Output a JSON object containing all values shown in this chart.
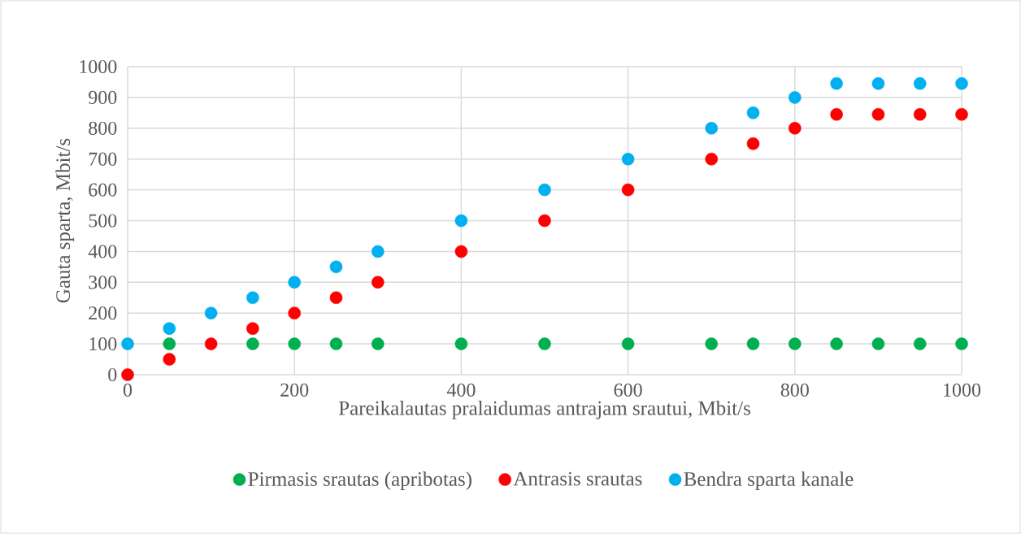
{
  "chart_data": {
    "type": "scatter",
    "xlabel": "Pareikalautas pralaidumas antrajam srautui, Mbit/s",
    "ylabel": "Gauta sparta, Mbit/s",
    "x": [
      0,
      50,
      100,
      150,
      200,
      250,
      300,
      400,
      500,
      600,
      700,
      750,
      800,
      850,
      900,
      950,
      1000
    ],
    "series": [
      {
        "name": "Pirmasis srautas (apribotas)",
        "color": "#00b050",
        "values": [
          null,
          100,
          null,
          100,
          100,
          100,
          100,
          100,
          100,
          100,
          100,
          100,
          100,
          100,
          100,
          100,
          100
        ]
      },
      {
        "name": "Antrasis srautas",
        "color": "#ff0000",
        "values": [
          0,
          50,
          100,
          150,
          200,
          250,
          300,
          400,
          500,
          600,
          700,
          750,
          800,
          845,
          845,
          845,
          845
        ]
      },
      {
        "name": "Bendra sparta kanale",
        "color": "#00b0f0",
        "values": [
          100,
          150,
          200,
          250,
          300,
          350,
          400,
          500,
          600,
          700,
          800,
          850,
          900,
          945,
          945,
          945,
          945
        ]
      }
    ],
    "xlim": [
      0,
      1000
    ],
    "xticks": [
      0,
      200,
      400,
      600,
      800,
      1000
    ],
    "ylim": [
      0,
      1000
    ],
    "yticks": [
      0,
      100,
      200,
      300,
      400,
      500,
      600,
      700,
      800,
      900,
      1000
    ],
    "grid": true,
    "legend": "bottom",
    "marker": "circle"
  }
}
